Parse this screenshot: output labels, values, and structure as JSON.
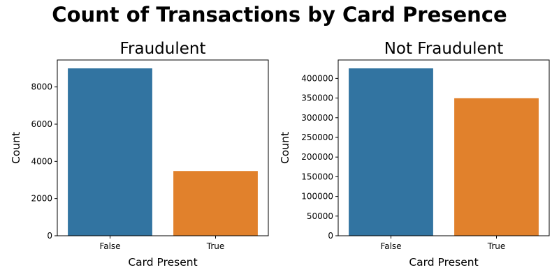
{
  "figure": {
    "title": "Count of Transactions by Card Presence"
  },
  "colors": {
    "false_bar": "#3274a1",
    "true_bar": "#e1812c",
    "axis": "#000000",
    "background": "#ffffff"
  },
  "chart_data": [
    {
      "type": "bar",
      "title": "Fraudulent",
      "xlabel": "Card Present",
      "ylabel": "Count",
      "categories": [
        "False",
        "True"
      ],
      "values": [
        9000,
        3480
      ],
      "ylim": [
        0,
        9450
      ],
      "yticks": [
        0,
        2000,
        4000,
        6000,
        8000
      ],
      "grid": false,
      "legend": "none"
    },
    {
      "type": "bar",
      "title": "Not Fraudulent",
      "xlabel": "Card Present",
      "ylabel": "Count",
      "categories": [
        "False",
        "True"
      ],
      "values": [
        425500,
        349500
      ],
      "ylim": [
        0,
        446775
      ],
      "yticks": [
        0,
        50000,
        100000,
        150000,
        200000,
        250000,
        300000,
        350000,
        400000
      ],
      "grid": false,
      "legend": "none"
    }
  ]
}
